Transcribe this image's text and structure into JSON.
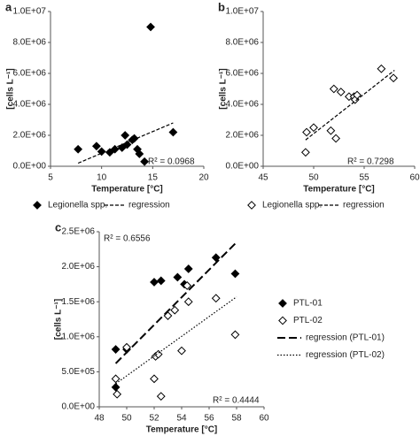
{
  "chart_data": [
    {
      "type": "scatter",
      "label": "a",
      "x_label": "Temperature [°C]",
      "y_label": "[cells L⁻¹]",
      "xlim": [
        5,
        20
      ],
      "xticks": [
        5,
        10,
        15,
        20
      ],
      "ylim": [
        0,
        10000000
      ],
      "yticks": [
        {
          "value": 0,
          "label": "0.0E+00"
        },
        {
          "value": 2000000,
          "label": "2.0E+06"
        },
        {
          "value": 4000000,
          "label": "4.0E+06"
        },
        {
          "value": 6000000,
          "label": "6.0E+06"
        },
        {
          "value": 8000000,
          "label": "8.0E+06"
        },
        {
          "value": 10000000,
          "label": "1.0E+07"
        }
      ],
      "legend": "bottom",
      "annotations": [
        "R² = 0.0968"
      ],
      "series": [
        {
          "name": "Legionella spp.",
          "color": "#000000",
          "marker": "filled",
          "x": [
            7.7,
            9.5,
            10,
            10.8,
            11.3,
            12,
            12.3,
            12.5,
            13,
            13.2,
            13.5,
            13.7,
            14.2,
            14.8,
            17
          ],
          "values": [
            1100000,
            1300000,
            950000,
            900000,
            1100000,
            1200000,
            2000000,
            1400000,
            1700000,
            1800000,
            1100000,
            800000,
            300000,
            9000000,
            2200000
          ]
        },
        {
          "name": "regression",
          "color": "#000000",
          "line_style": "dashed",
          "x": [
            7.7,
            17
          ],
          "values": [
            200000,
            2800000
          ]
        }
      ]
    },
    {
      "type": "scatter",
      "label": "b",
      "x_label": "Temperature [°C]",
      "y_label": "[cells L⁻¹]",
      "xlim": [
        45,
        60
      ],
      "xticks": [
        45,
        50,
        55,
        60
      ],
      "ylim": [
        0,
        10000000
      ],
      "yticks": [
        {
          "value": 0,
          "label": "0.0E+00"
        },
        {
          "value": 2000000,
          "label": "2.0E+06"
        },
        {
          "value": 4000000,
          "label": "4.0E+06"
        },
        {
          "value": 6000000,
          "label": "6.0E+06"
        },
        {
          "value": 8000000,
          "label": "8.0E+06"
        },
        {
          "value": 10000000,
          "label": "1.0E+07"
        }
      ],
      "legend": "bottom",
      "annotations": [
        "R² = 0.7298"
      ],
      "series": [
        {
          "name": "Legionella spp.",
          "color": "#000000",
          "marker": "open",
          "x": [
            49.2,
            49.3,
            50,
            51.7,
            52,
            52.2,
            52.7,
            53.5,
            54,
            54.1,
            54.3,
            56.7,
            57.9
          ],
          "values": [
            900000,
            2200000,
            2500000,
            2300000,
            5000000,
            1800000,
            4800000,
            4500000,
            4500000,
            4300000,
            4600000,
            6300000,
            5700000
          ]
        },
        {
          "name": "regression",
          "color": "#000000",
          "line_style": "dashed",
          "x": [
            49.2,
            58
          ],
          "values": [
            1700000,
            6200000
          ]
        }
      ]
    },
    {
      "type": "scatter",
      "label": "c",
      "x_label": "Temperature [°C]",
      "y_label": "[cells L⁻¹]",
      "xlim": [
        48,
        60
      ],
      "xticks": [
        48,
        50,
        52,
        54,
        56,
        58,
        60
      ],
      "ylim": [
        0,
        2500000
      ],
      "yticks": [
        {
          "value": 0,
          "label": "0.0E+00"
        },
        {
          "value": 500000,
          "label": "5.0E+05"
        },
        {
          "value": 1000000,
          "label": "1.0E+06"
        },
        {
          "value": 1500000,
          "label": "1.5E+06"
        },
        {
          "value": 2000000,
          "label": "2.0E+06"
        },
        {
          "value": 2500000,
          "label": "2.5E+06"
        }
      ],
      "legend": "right",
      "annotations": [
        "R² = 0.6556",
        "R² = 0.4444"
      ],
      "series": [
        {
          "name": "PTL-01",
          "color": "#000000",
          "marker": "filled",
          "x": [
            49.2,
            49.2,
            50,
            52,
            52.5,
            53.7,
            54.2,
            54.5,
            56.5,
            57.9
          ],
          "values": [
            820000,
            280000,
            820000,
            1780000,
            1800000,
            1850000,
            1750000,
            1970000,
            2130000,
            1900000
          ]
        },
        {
          "name": "PTL-02",
          "color": "#000000",
          "marker": "open",
          "x": [
            49.2,
            49.3,
            50,
            52,
            52.1,
            52.3,
            52.5,
            53,
            53.5,
            54,
            54.4,
            54.5,
            56.5,
            57.9
          ],
          "values": [
            400000,
            180000,
            850000,
            400000,
            720000,
            750000,
            150000,
            1300000,
            1380000,
            800000,
            1730000,
            1500000,
            1550000,
            1030000
          ]
        },
        {
          "name": "regression (PTL-01)",
          "color": "#000000",
          "line_style": "long-dash",
          "x": [
            49.2,
            58
          ],
          "values": [
            620000,
            2350000
          ]
        },
        {
          "name": "regression (PTL-02)",
          "color": "#000000",
          "line_style": "dotted",
          "x": [
            49.2,
            58
          ],
          "values": [
            330000,
            1570000
          ]
        }
      ]
    }
  ]
}
